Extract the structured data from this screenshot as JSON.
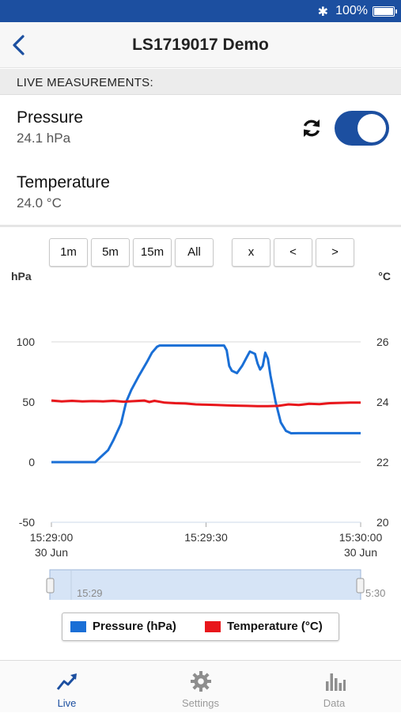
{
  "status_bar": {
    "bluetooth_icon": "bluetooth-icon",
    "battery_text": "100%"
  },
  "nav": {
    "title": "LS1719017 Demo",
    "back_icon": "chevron-left-icon"
  },
  "section": {
    "title": "LIVE MEASUREMENTS:"
  },
  "measurements": [
    {
      "name": "Pressure",
      "value": "24.1 hPa"
    },
    {
      "name": "Temperature",
      "value": "24.0 °C"
    }
  ],
  "live_toggle": {
    "on": true
  },
  "range_buttons": [
    "1m",
    "5m",
    "15m",
    "All"
  ],
  "nav_buttons": [
    "x",
    "<",
    ">"
  ],
  "colors": {
    "accent": "#1c4fa0",
    "pressure": "#1a6fd6",
    "temperature": "#e8161b"
  },
  "chart_data": {
    "type": "line",
    "ylabel_left": "hPa",
    "ylabel_right": "°C",
    "y_left_ticks": [
      "100",
      "50",
      "0",
      "-50"
    ],
    "y_right_ticks": [
      "26",
      "24",
      "22",
      "20"
    ],
    "ylim_left": [
      -50,
      100
    ],
    "ylim_right": [
      20,
      26
    ],
    "x_ticks": [
      {
        "time": "15:29:00",
        "date": "30 Jun"
      },
      {
        "time": "15:29:30",
        "date": ""
      },
      {
        "time": "15:30:00",
        "date": "30 Jun"
      }
    ],
    "xlim_seconds_after_15_29": [
      0,
      60
    ],
    "series": [
      {
        "name": "Pressure (hPa)",
        "axis": "left",
        "points": [
          [
            0,
            0
          ],
          [
            8.5,
            0
          ],
          [
            9.5,
            4
          ],
          [
            11,
            10
          ],
          [
            12,
            18
          ],
          [
            13.5,
            32
          ],
          [
            14.5,
            50
          ],
          [
            15.5,
            60
          ],
          [
            17,
            72
          ],
          [
            18.5,
            83
          ],
          [
            19.5,
            91
          ],
          [
            20.5,
            96
          ],
          [
            21,
            97
          ],
          [
            33.5,
            97
          ],
          [
            34,
            93
          ],
          [
            34.5,
            80
          ],
          [
            35,
            76
          ],
          [
            36,
            74
          ],
          [
            37,
            80
          ],
          [
            38,
            88
          ],
          [
            38.5,
            92
          ],
          [
            39.5,
            90
          ],
          [
            40,
            82
          ],
          [
            40.5,
            77
          ],
          [
            41,
            80
          ],
          [
            41.5,
            91
          ],
          [
            42,
            86
          ],
          [
            42.5,
            72
          ],
          [
            43.5,
            50
          ],
          [
            44.5,
            33
          ],
          [
            45.5,
            26
          ],
          [
            46.5,
            24
          ],
          [
            48,
            24.1
          ],
          [
            60,
            24.1
          ]
        ]
      },
      {
        "name": "Temperature (°C)",
        "axis": "right",
        "points": [
          [
            0,
            24.05
          ],
          [
            2,
            24.02
          ],
          [
            4,
            24.04
          ],
          [
            6,
            24.02
          ],
          [
            8,
            24.03
          ],
          [
            10,
            24.02
          ],
          [
            12,
            24.04
          ],
          [
            14,
            24.01
          ],
          [
            16,
            24.03
          ],
          [
            18,
            24.05
          ],
          [
            19,
            24.0
          ],
          [
            20,
            24.04
          ],
          [
            22,
            23.98
          ],
          [
            24,
            23.96
          ],
          [
            26,
            23.95
          ],
          [
            28,
            23.92
          ],
          [
            30,
            23.91
          ],
          [
            32,
            23.9
          ],
          [
            34,
            23.89
          ],
          [
            36,
            23.88
          ],
          [
            38,
            23.87
          ],
          [
            40,
            23.86
          ],
          [
            42,
            23.86
          ],
          [
            44,
            23.87
          ],
          [
            46,
            23.92
          ],
          [
            48,
            23.9
          ],
          [
            50,
            23.94
          ],
          [
            52,
            23.93
          ],
          [
            54,
            23.96
          ],
          [
            56,
            23.97
          ],
          [
            58,
            23.98
          ],
          [
            60,
            23.98
          ]
        ]
      }
    ],
    "grid": true,
    "legend": "bottom"
  },
  "overview": {
    "start_label": "15:29",
    "end_label": "5:30"
  },
  "legend": {
    "pressure_label": "Pressure (hPa)",
    "temperature_label": "Temperature (°C)"
  },
  "tabs": [
    {
      "label": "Live",
      "icon": "trend-icon",
      "active": true
    },
    {
      "label": "Settings",
      "icon": "gear-icon",
      "active": false
    },
    {
      "label": "Data",
      "icon": "bar-chart-icon",
      "active": false
    }
  ]
}
